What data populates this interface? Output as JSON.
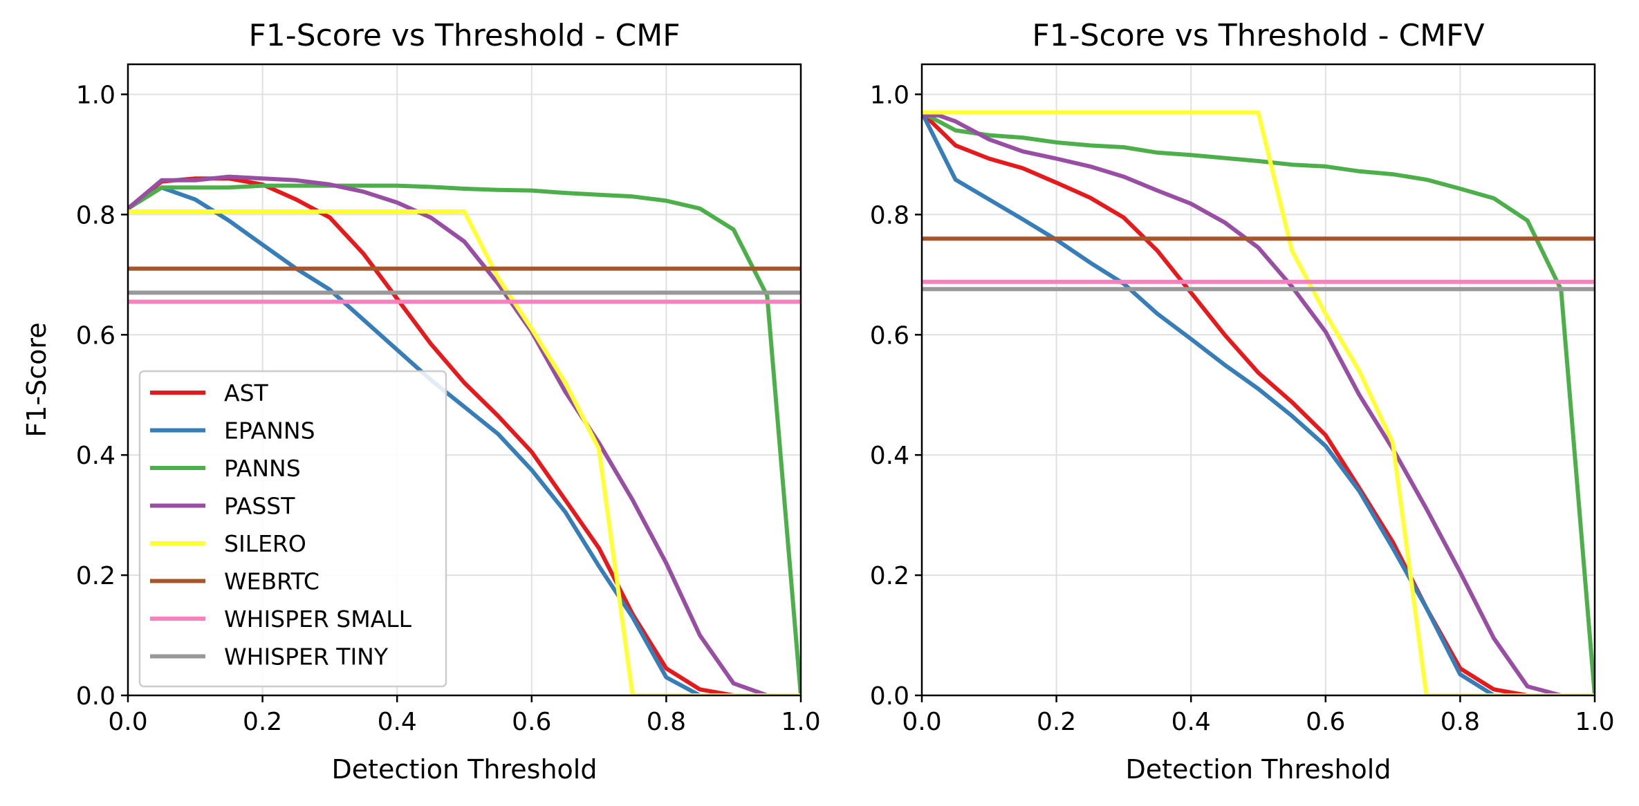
{
  "chart_data": [
    {
      "type": "line",
      "title": "F1-Score vs Threshold - CMF",
      "xlabel": "Detection Threshold",
      "ylabel": "F1-Score",
      "xlim": [
        0.0,
        1.0
      ],
      "ylim": [
        0.0,
        1.05
      ],
      "xticks": [
        "0.0",
        "0.2",
        "0.4",
        "0.6",
        "0.8",
        "1.0"
      ],
      "yticks": [
        "0.0",
        "0.2",
        "0.4",
        "0.6",
        "0.8",
        "1.0"
      ],
      "grid": true,
      "legend": "lower-left",
      "series": [
        {
          "name": "AST",
          "color": "#e41a1c",
          "x": [
            0.0,
            0.05,
            0.1,
            0.15,
            0.2,
            0.25,
            0.3,
            0.35,
            0.4,
            0.45,
            0.5,
            0.55,
            0.6,
            0.65,
            0.7,
            0.75,
            0.8,
            0.85,
            0.9,
            0.95,
            1.0
          ],
          "y": [
            0.81,
            0.855,
            0.86,
            0.86,
            0.85,
            0.825,
            0.795,
            0.735,
            0.66,
            0.585,
            0.52,
            0.465,
            0.405,
            0.325,
            0.245,
            0.135,
            0.045,
            0.01,
            0.0,
            0.0,
            0.0
          ]
        },
        {
          "name": "EPANNS",
          "color": "#377eb8",
          "x": [
            0.0,
            0.05,
            0.1,
            0.15,
            0.2,
            0.25,
            0.3,
            0.35,
            0.4,
            0.45,
            0.5,
            0.55,
            0.6,
            0.65,
            0.7,
            0.75,
            0.8,
            0.85,
            0.9,
            0.95,
            1.0
          ],
          "y": [
            0.81,
            0.845,
            0.825,
            0.79,
            0.75,
            0.71,
            0.675,
            0.625,
            0.575,
            0.525,
            0.48,
            0.435,
            0.375,
            0.305,
            0.215,
            0.13,
            0.03,
            0.0,
            0.0,
            0.0,
            0.0
          ]
        },
        {
          "name": "PANNS",
          "color": "#4daf4a",
          "x": [
            0.0,
            0.05,
            0.1,
            0.15,
            0.2,
            0.25,
            0.3,
            0.35,
            0.4,
            0.45,
            0.5,
            0.55,
            0.6,
            0.65,
            0.7,
            0.75,
            0.8,
            0.85,
            0.9,
            0.95,
            1.0
          ],
          "y": [
            0.81,
            0.845,
            0.845,
            0.845,
            0.848,
            0.848,
            0.848,
            0.848,
            0.848,
            0.846,
            0.843,
            0.841,
            0.84,
            0.836,
            0.833,
            0.83,
            0.823,
            0.81,
            0.775,
            0.665,
            0.0
          ]
        },
        {
          "name": "PASST",
          "color": "#984ea3",
          "x": [
            0.0,
            0.05,
            0.1,
            0.15,
            0.2,
            0.25,
            0.3,
            0.35,
            0.4,
            0.45,
            0.5,
            0.55,
            0.6,
            0.65,
            0.7,
            0.75,
            0.8,
            0.85,
            0.9,
            0.95,
            1.0
          ],
          "y": [
            0.81,
            0.857,
            0.857,
            0.863,
            0.86,
            0.857,
            0.85,
            0.838,
            0.82,
            0.795,
            0.755,
            0.685,
            0.605,
            0.505,
            0.42,
            0.325,
            0.22,
            0.1,
            0.02,
            0.0,
            0.0
          ]
        },
        {
          "name": "SILERO",
          "color": "#ffff33",
          "x": [
            0.0,
            0.05,
            0.1,
            0.15,
            0.2,
            0.25,
            0.3,
            0.35,
            0.4,
            0.45,
            0.5,
            0.55,
            0.6,
            0.65,
            0.7,
            0.75,
            0.8,
            0.85,
            0.9,
            0.95,
            1.0
          ],
          "y": [
            0.805,
            0.805,
            0.805,
            0.805,
            0.805,
            0.805,
            0.805,
            0.805,
            0.805,
            0.805,
            0.805,
            0.695,
            0.61,
            0.52,
            0.41,
            0.0,
            0.0,
            0.0,
            0.0,
            0.0,
            0.0
          ]
        },
        {
          "name": "WEBRTC",
          "color": "#a65628",
          "x": [
            0.0,
            1.0
          ],
          "y": [
            0.71,
            0.71
          ]
        },
        {
          "name": "WHISPER SMALL",
          "color": "#f781bf",
          "x": [
            0.0,
            1.0
          ],
          "y": [
            0.655,
            0.655
          ]
        },
        {
          "name": "WHISPER TINY",
          "color": "#999999",
          "x": [
            0.0,
            1.0
          ],
          "y": [
            0.67,
            0.67
          ]
        }
      ]
    },
    {
      "type": "line",
      "title": "F1-Score vs Threshold - CMFV",
      "xlabel": "Detection Threshold",
      "ylabel": "",
      "xlim": [
        0.0,
        1.0
      ],
      "ylim": [
        0.0,
        1.05
      ],
      "xticks": [
        "0.0",
        "0.2",
        "0.4",
        "0.6",
        "0.8",
        "1.0"
      ],
      "yticks": [
        "0.0",
        "0.2",
        "0.4",
        "0.6",
        "0.8",
        "1.0"
      ],
      "grid": true,
      "legend": "none",
      "series": [
        {
          "name": "AST",
          "color": "#e41a1c",
          "x": [
            0.0,
            0.05,
            0.1,
            0.15,
            0.2,
            0.25,
            0.3,
            0.35,
            0.4,
            0.45,
            0.5,
            0.55,
            0.6,
            0.65,
            0.7,
            0.75,
            0.8,
            0.85,
            0.9,
            0.95,
            1.0
          ],
          "y": [
            0.97,
            0.915,
            0.893,
            0.877,
            0.853,
            0.828,
            0.795,
            0.74,
            0.67,
            0.6,
            0.537,
            0.488,
            0.433,
            0.345,
            0.255,
            0.145,
            0.045,
            0.01,
            0.0,
            0.0,
            0.0
          ]
        },
        {
          "name": "EPANNS",
          "color": "#377eb8",
          "x": [
            0.0,
            0.05,
            0.1,
            0.15,
            0.2,
            0.25,
            0.3,
            0.35,
            0.4,
            0.45,
            0.5,
            0.55,
            0.6,
            0.65,
            0.7,
            0.75,
            0.8,
            0.85,
            0.9,
            0.95,
            1.0
          ],
          "y": [
            0.97,
            0.858,
            0.825,
            0.792,
            0.758,
            0.72,
            0.685,
            0.635,
            0.593,
            0.55,
            0.51,
            0.465,
            0.415,
            0.34,
            0.245,
            0.145,
            0.035,
            0.0,
            0.0,
            0.0,
            0.0
          ]
        },
        {
          "name": "PANNS",
          "color": "#4daf4a",
          "x": [
            0.0,
            0.05,
            0.1,
            0.15,
            0.2,
            0.25,
            0.3,
            0.35,
            0.4,
            0.45,
            0.5,
            0.55,
            0.6,
            0.65,
            0.7,
            0.75,
            0.8,
            0.85,
            0.9,
            0.95,
            1.0
          ],
          "y": [
            0.97,
            0.94,
            0.932,
            0.928,
            0.92,
            0.915,
            0.912,
            0.903,
            0.899,
            0.894,
            0.889,
            0.883,
            0.88,
            0.872,
            0.867,
            0.858,
            0.843,
            0.827,
            0.79,
            0.675,
            0.0
          ]
        },
        {
          "name": "PASST",
          "color": "#984ea3",
          "x": [
            0.0,
            0.025,
            0.05,
            0.1,
            0.15,
            0.2,
            0.25,
            0.3,
            0.35,
            0.4,
            0.45,
            0.5,
            0.55,
            0.6,
            0.65,
            0.7,
            0.75,
            0.8,
            0.85,
            0.9,
            0.95,
            1.0
          ],
          "y": [
            0.965,
            0.965,
            0.955,
            0.925,
            0.905,
            0.893,
            0.88,
            0.863,
            0.84,
            0.818,
            0.787,
            0.745,
            0.68,
            0.605,
            0.5,
            0.41,
            0.31,
            0.205,
            0.095,
            0.015,
            0.0,
            0.0
          ]
        },
        {
          "name": "SILERO",
          "color": "#ffff33",
          "x": [
            0.0,
            0.05,
            0.1,
            0.15,
            0.2,
            0.25,
            0.3,
            0.35,
            0.4,
            0.45,
            0.5,
            0.55,
            0.6,
            0.65,
            0.7,
            0.75,
            0.8,
            0.85,
            0.9,
            0.95,
            1.0
          ],
          "y": [
            0.97,
            0.97,
            0.97,
            0.97,
            0.97,
            0.97,
            0.97,
            0.97,
            0.97,
            0.97,
            0.97,
            0.74,
            0.635,
            0.54,
            0.42,
            0.0,
            0.0,
            0.0,
            0.0,
            0.0,
            0.0
          ]
        },
        {
          "name": "WEBRTC",
          "color": "#a65628",
          "x": [
            0.0,
            1.0
          ],
          "y": [
            0.76,
            0.76
          ]
        },
        {
          "name": "WHISPER SMALL",
          "color": "#f781bf",
          "x": [
            0.0,
            1.0
          ],
          "y": [
            0.688,
            0.688
          ]
        },
        {
          "name": "WHISPER TINY",
          "color": "#999999",
          "x": [
            0.0,
            1.0
          ],
          "y": [
            0.676,
            0.676
          ]
        }
      ]
    }
  ]
}
